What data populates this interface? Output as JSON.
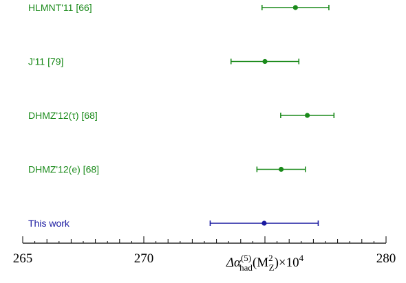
{
  "chart_data": {
    "type": "scatter",
    "subtype": "error-bar",
    "xlim": [
      265,
      280
    ],
    "xticks": [
      265,
      270,
      275,
      280
    ],
    "xtick_labels": [
      "265",
      "270",
      "",
      "280"
    ],
    "xlabel": {
      "prefix": "Δα",
      "superscript": "(5)",
      "subscript": "had",
      "argument_open": "(M",
      "argument_superscript": "2",
      "argument_subscript": "Z",
      "argument_close": ")×10",
      "power": "4"
    },
    "grid": false,
    "series": [
      {
        "label": "HLMNT'11 [66]",
        "value": 276.26,
        "err_low": 1.38,
        "err_high": 1.38,
        "color": "#1a8a1a"
      },
      {
        "label": "J'11 [79]",
        "value": 275.0,
        "err_low": 1.4,
        "err_high": 1.4,
        "color": "#1a8a1a"
      },
      {
        "label": "DHMZ'12(τ) [68]",
        "value": 276.75,
        "err_low": 1.1,
        "err_high": 1.1,
        "color": "#1a8a1a"
      },
      {
        "label": "DHMZ'12(e) [68]",
        "value": 275.67,
        "err_low": 1.0,
        "err_high": 1.0,
        "color": "#1a8a1a"
      },
      {
        "label": "This work",
        "value": 274.97,
        "err_low": 2.23,
        "err_high": 2.23,
        "color": "#1a1aa0"
      }
    ]
  }
}
